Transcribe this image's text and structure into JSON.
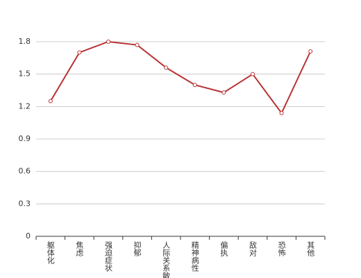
{
  "chart_data": {
    "type": "line",
    "categories": [
      "躯体化",
      "焦虑",
      "强迫症状",
      "抑郁",
      "人际关系敏感",
      "精神病性",
      "偏执",
      "敌对",
      "恐怖",
      "其他"
    ],
    "values": [
      1.25,
      1.7,
      1.8,
      1.77,
      1.56,
      1.4,
      1.33,
      1.5,
      1.14,
      1.71
    ],
    "color": "#b83232",
    "ylim": [
      0,
      1.8
    ],
    "yticks": [
      0,
      0.3,
      0.6,
      0.9,
      1.2,
      1.5,
      1.8
    ],
    "grid": true
  }
}
